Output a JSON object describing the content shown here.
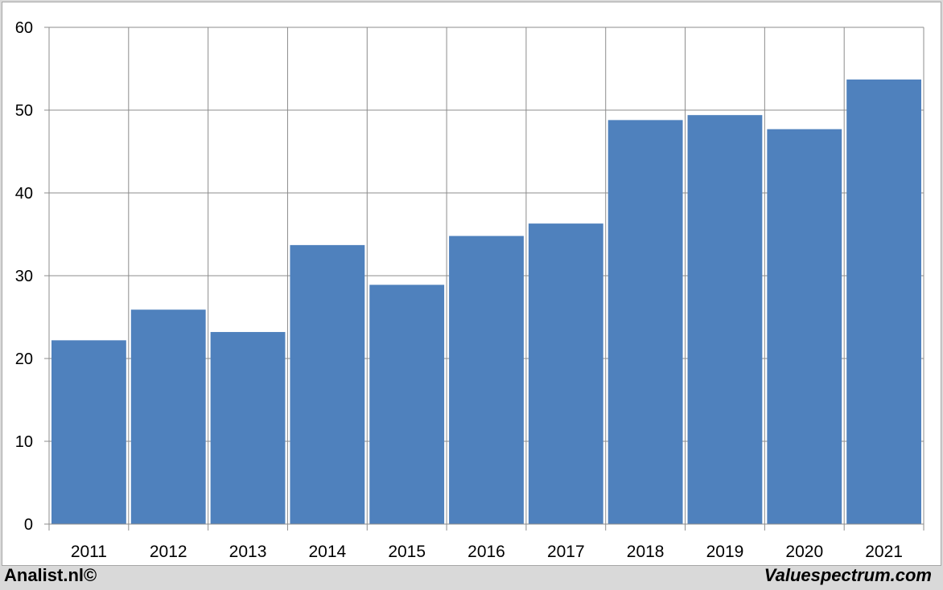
{
  "chart_data": {
    "type": "bar",
    "categories": [
      "2011",
      "2012",
      "2013",
      "2014",
      "2015",
      "2016",
      "2017",
      "2018",
      "2019",
      "2020",
      "2021"
    ],
    "values": [
      22.2,
      25.9,
      23.2,
      33.7,
      28.9,
      34.8,
      36.3,
      48.8,
      49.4,
      47.7,
      53.7
    ],
    "ylim": [
      0,
      60
    ],
    "yticks": [
      0,
      10,
      20,
      30,
      40,
      50,
      60
    ],
    "title": "",
    "xlabel": "",
    "ylabel": "",
    "grid": true,
    "bar_color": "#4f81bd"
  },
  "footer": {
    "left": "Analist.nl©",
    "right": "Valuespectrum.com"
  }
}
